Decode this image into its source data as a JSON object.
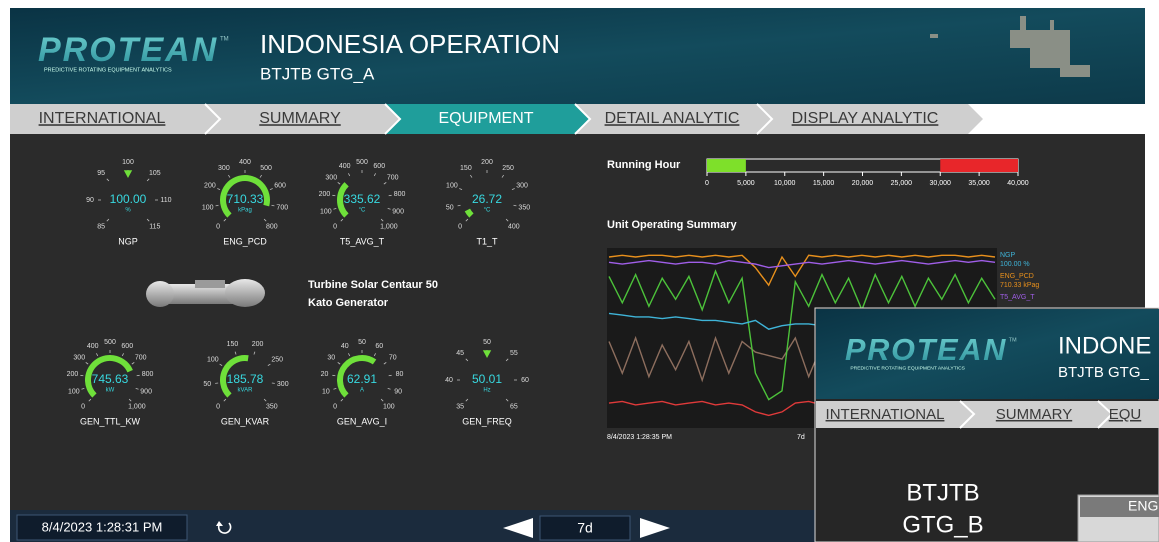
{
  "header": {
    "logo": "PROTEAN",
    "logo_mark": "TM",
    "logo_tagline": "PREDICTIVE ROTATING EQUIPMENT ANALYTICS",
    "title": "INDONESIA OPERATION",
    "subtitle": "BTJTB GTG_A"
  },
  "nav": {
    "tabs": [
      "INTERNATIONAL",
      "SUMMARY",
      "EQUIPMENT",
      "DETAIL ANALYTIC",
      "DISPLAY ANALYTIC"
    ],
    "active": 2
  },
  "gauges": [
    {
      "name": "NGP",
      "value": 100,
      "label": "100.00",
      "unit": "%",
      "indicator": "marker",
      "ticks": [
        85,
        90,
        95,
        100,
        105,
        110,
        115
      ]
    },
    {
      "name": "ENG_PCD",
      "value": 710.33,
      "label": "710.33",
      "unit": "kPag",
      "indicator": "arc",
      "ticks": [
        0,
        100,
        200,
        300,
        400,
        500,
        600,
        700,
        800
      ]
    },
    {
      "name": "T5_AVG_T",
      "value": 335.62,
      "label": "335.62",
      "unit": "°C",
      "indicator": "arc",
      "ticks": [
        0,
        100,
        200,
        300,
        400,
        500,
        600,
        700,
        800,
        900,
        {
          "value": 1000,
          "label": "1,000"
        }
      ]
    },
    {
      "name": "T1_T",
      "value": 26.72,
      "label": "26.72",
      "unit": "°C",
      "indicator": "arc",
      "ticks": [
        0,
        50,
        100,
        150,
        200,
        250,
        300,
        350,
        400
      ]
    },
    {
      "name": "GEN_TTL_KW",
      "value": 745.63,
      "label": "745.63",
      "unit": "kW",
      "indicator": "arc",
      "ticks": [
        0,
        100,
        200,
        300,
        400,
        500,
        600,
        700,
        800,
        900,
        {
          "value": 1000,
          "label": "1,000"
        }
      ]
    },
    {
      "name": "GEN_KVAR",
      "value": 185.78,
      "label": "185.78",
      "unit": "kVAR",
      "indicator": "arc",
      "ticks": [
        0,
        50,
        100,
        150,
        200,
        250,
        300,
        350
      ]
    },
    {
      "name": "GEN_AVG_I",
      "value": 62.91,
      "label": "62.91",
      "unit": "A",
      "indicator": "arc",
      "ticks": [
        0,
        10,
        20,
        30,
        40,
        50,
        60,
        70,
        80,
        90,
        100
      ]
    },
    {
      "name": "GEN_FREQ",
      "value": 50.01,
      "label": "50.01",
      "unit": "Hz",
      "indicator": "marker",
      "ticks": [
        35,
        40,
        45,
        50,
        55,
        60,
        65
      ]
    }
  ],
  "equipment": {
    "lines": [
      "Turbine Solar Centaur 50",
      "Kato Generator"
    ]
  },
  "running_hour": {
    "title": "Running Hour",
    "value": 5000,
    "alarm_from": 30000,
    "ticks": [
      0,
      {
        "value": 5000,
        "label": "5,000"
      },
      {
        "value": 10000,
        "label": "10,000"
      },
      {
        "value": 15000,
        "label": "15,000"
      },
      {
        "value": 20000,
        "label": "20,000"
      },
      {
        "value": 25000,
        "label": "25,000"
      },
      {
        "value": 30000,
        "label": "30,000"
      },
      {
        "value": 35000,
        "label": "35,000"
      },
      {
        "value": 40000,
        "label": "40,000"
      }
    ]
  },
  "trend": {
    "title": "Unit Operating Summary",
    "x_start": "8/4/2023 1:28:35 PM",
    "x_span": "7d",
    "ylim": [
      0,
      100
    ],
    "series": [
      {
        "name": null,
        "color": "#8d6e5e",
        "values": [
          48,
          30,
          50,
          28,
          46,
          32,
          48,
          26,
          50,
          30,
          48,
          42,
          40,
          38,
          50,
          28,
          46,
          30,
          48,
          26,
          50,
          30,
          46,
          28,
          48,
          30,
          50,
          28,
          46,
          30
        ]
      },
      {
        "name": null,
        "color": "#4cc23a",
        "values": [
          85,
          70,
          86,
          68,
          84,
          72,
          85,
          66,
          88,
          70,
          84,
          30,
          15,
          20,
          82,
          68,
          86,
          70,
          84,
          66,
          86,
          70,
          85,
          68,
          84,
          72,
          86,
          70,
          84,
          72
        ]
      },
      {
        "name": null,
        "color": "#e03a3a",
        "values": [
          13,
          14,
          12,
          13,
          14,
          12,
          13,
          14,
          12,
          13,
          12,
          8,
          6,
          8,
          13,
          14,
          12,
          13,
          14,
          12,
          13,
          14,
          12,
          13,
          14,
          12,
          13,
          14,
          12,
          13
        ]
      },
      {
        "name": "NGP",
        "label": "100.00 %",
        "color": "#3fb4d8",
        "values": [
          64,
          63,
          62,
          62,
          61,
          62,
          61,
          60,
          60,
          59,
          58,
          60,
          55,
          57,
          58,
          58,
          57,
          56,
          56,
          55,
          56,
          55,
          55,
          54,
          55,
          54,
          55,
          54,
          54,
          54
        ]
      },
      {
        "name": "ENG_PCD",
        "label": "710.33 kPag",
        "color": "#e8901c",
        "values": [
          96,
          97,
          96,
          97,
          97,
          96,
          97,
          96,
          97,
          96,
          97,
          90,
          80,
          96,
          85,
          97,
          96,
          97,
          96,
          97,
          96,
          97,
          96,
          97,
          96,
          97,
          97,
          96,
          97,
          96
        ]
      },
      {
        "name": "T5_AVG_T",
        "color": "#a05ee8",
        "values": [
          93,
          92,
          93,
          94,
          93,
          92,
          93,
          93,
          92,
          94,
          93,
          92,
          90,
          91,
          92,
          93,
          92,
          93,
          94,
          93,
          92,
          93,
          94,
          93,
          92,
          93,
          94,
          93,
          94,
          93
        ]
      }
    ]
  },
  "footer": {
    "timestamp": "8/4/2023 1:28:31 PM",
    "period": "7d"
  },
  "overlay": {
    "logo": "PROTEAN",
    "logo_mark": "TM",
    "logo_tagline": "PREDICTIVE ROTATING EQUIPMENT ANALYTICS",
    "title": "INDONE",
    "subtitle": "BTJTB GTG_",
    "tabs": [
      "INTERNATIONAL",
      "SUMMARY",
      "EQU"
    ],
    "unit_lines": [
      "BTJTB",
      "GTG_B"
    ],
    "panel": "ENG"
  }
}
